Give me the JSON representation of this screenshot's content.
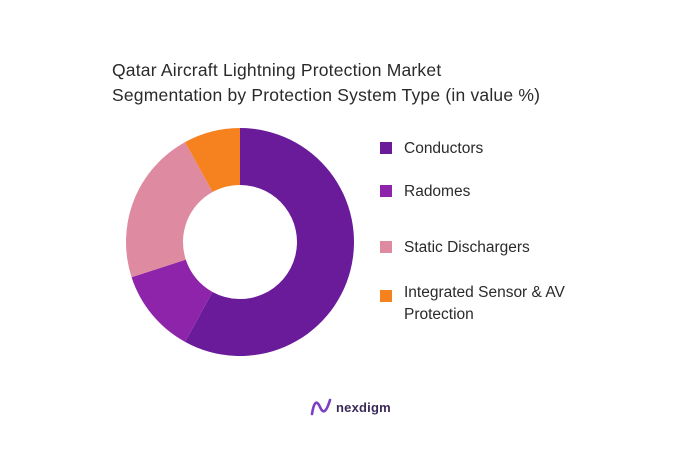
{
  "chart_data": {
    "type": "donut",
    "title_lines": [
      "Qatar Aircraft Lightning Protection Market",
      "Segmentation by Protection System Type (in value %)"
    ],
    "categories": [
      "Conductors",
      "Radomes",
      "Static Dischargers",
      "Integrated Sensor & AV Protection"
    ],
    "legend_lines": [
      [
        "Conductors"
      ],
      [
        "Radomes"
      ],
      [
        "Static Dischargers"
      ],
      [
        "Integrated Sensor & AV",
        "Protection"
      ]
    ],
    "values": [
      58,
      12,
      22,
      8
    ],
    "colors": [
      "#6a1b9a",
      "#8e24aa",
      "#de8aa0",
      "#f5821f"
    ],
    "legend_placement": "right",
    "start_angle_deg": 0,
    "direction": "clockwise"
  },
  "brand": {
    "name": "nexdigm",
    "icon": "nexdigm-logo-icon"
  }
}
